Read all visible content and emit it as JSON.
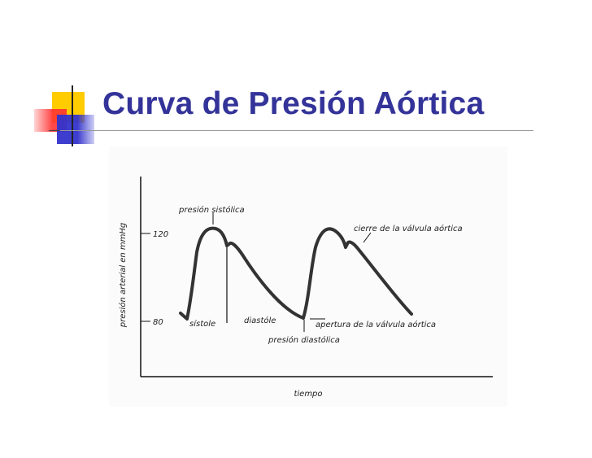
{
  "slide": {
    "title": "Curva de Presión Aórtica",
    "accent_colors": {
      "title": "#333399",
      "square_yellow": "#ffcc00",
      "square_red": "#ff3333",
      "square_blue": "#3333cc"
    }
  },
  "diagram": {
    "y_axis_label": "presión arterial en mmHg",
    "x_axis_label": "tiempo",
    "ticks": {
      "high": "120",
      "low": "80"
    },
    "annotations": {
      "systolic_pressure": "presión sistólica",
      "aortic_valve_closure": "cierre de la válvula aórtica",
      "systole": "sístole",
      "diastole": "diastóle",
      "aortic_valve_opening": "apertura de la válvula aórtica",
      "diastolic_pressure": "presión diastólica"
    }
  }
}
